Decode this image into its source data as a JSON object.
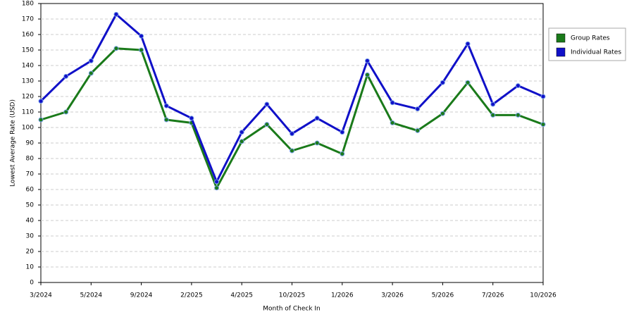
{
  "chart_data": {
    "type": "line",
    "x_label": "Month of Check In",
    "y_label": "Lowest Average Rate (USD)",
    "categories": [
      "3/2024",
      null,
      "5/2024",
      null,
      "9/2024",
      null,
      "2/2025",
      null,
      "4/2025",
      null,
      "10/2025",
      null,
      "1/2026",
      null,
      "3/2026",
      null,
      "5/2026",
      null,
      "7/2026",
      null,
      "10/2026"
    ],
    "series": [
      {
        "name": "Group Rates",
        "color": "#1a7a1a",
        "values": [
          105,
          110,
          135,
          151,
          150,
          105,
          103,
          61,
          91,
          102,
          85,
          90,
          83,
          134,
          103,
          98,
          109,
          129,
          108,
          108,
          102
        ]
      },
      {
        "name": "Individual Rates",
        "color": "#1010c8",
        "values": [
          117,
          133,
          143,
          173,
          159,
          114,
          106,
          65,
          97,
          115,
          96,
          106,
          97,
          143,
          116,
          112,
          129,
          154,
          115,
          127,
          120
        ]
      }
    ],
    "ylim": [
      0,
      180
    ],
    "yticks": [
      0,
      10,
      20,
      30,
      40,
      50,
      60,
      70,
      80,
      90,
      100,
      110,
      120,
      130,
      140,
      150,
      160,
      170,
      180
    ],
    "grid": true,
    "legend": "right"
  }
}
